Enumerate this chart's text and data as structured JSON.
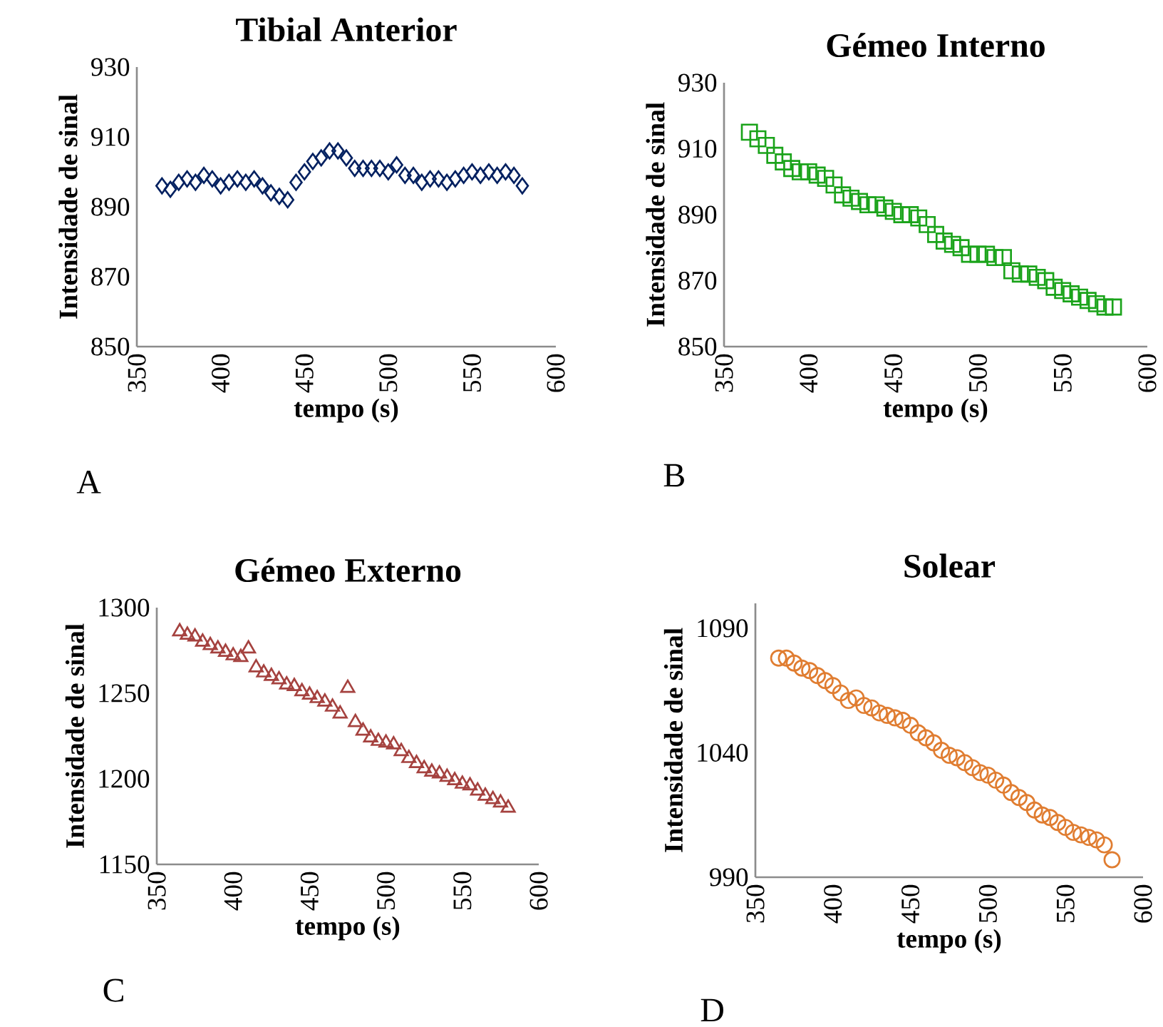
{
  "chart_data": [
    {
      "type": "scatter",
      "title": "Tibial Anterior",
      "xlabel": "tempo (s)",
      "ylabel": "Intensidade de sinal",
      "annotations": [
        "A"
      ],
      "marker": "diamond",
      "xlim": [
        350,
        600
      ],
      "xticks": [
        350,
        400,
        450,
        500,
        550,
        600
      ],
      "ylim": [
        850,
        930
      ],
      "yticks": [
        850,
        870,
        890,
        910,
        930
      ],
      "x": [
        365,
        370,
        375,
        380,
        385,
        390,
        395,
        400,
        405,
        410,
        415,
        420,
        425,
        430,
        435,
        440,
        445,
        450,
        455,
        460,
        465,
        470,
        475,
        480,
        485,
        490,
        495,
        500,
        505,
        510,
        515,
        520,
        525,
        530,
        535,
        540,
        545,
        550,
        555,
        560,
        565,
        570,
        575,
        580
      ],
      "series": [
        {
          "color": "#002060",
          "values": [
            896,
            895,
            897,
            898,
            897,
            899,
            898,
            896,
            897,
            898,
            897,
            898,
            896,
            894,
            893,
            892,
            897,
            900,
            903,
            904,
            906,
            906,
            904,
            901,
            901,
            901,
            901,
            900,
            902,
            899,
            899,
            897,
            898,
            898,
            897,
            898,
            899,
            900,
            899,
            900,
            899,
            900,
            899,
            896
          ]
        }
      ]
    },
    {
      "type": "scatter",
      "title": "Gémeo Interno",
      "xlabel": "tempo (s)",
      "ylabel": "Intensidade de sinal",
      "annotations": [
        "B"
      ],
      "marker": "square",
      "xlim": [
        350,
        600
      ],
      "xticks": [
        350,
        400,
        450,
        500,
        550,
        600
      ],
      "ylim": [
        850,
        930
      ],
      "yticks": [
        850,
        870,
        890,
        910,
        930
      ],
      "x": [
        365,
        370,
        375,
        380,
        385,
        390,
        395,
        400,
        405,
        410,
        415,
        420,
        425,
        430,
        435,
        440,
        445,
        450,
        455,
        460,
        465,
        470,
        475,
        480,
        485,
        490,
        495,
        500,
        505,
        510,
        515,
        520,
        525,
        530,
        535,
        540,
        545,
        550,
        555,
        560,
        565,
        570,
        575,
        580
      ],
      "series": [
        {
          "color": "#1aa31a",
          "values": [
            915,
            913,
            911,
            908,
            906,
            904,
            903,
            903,
            902,
            901,
            899,
            896,
            895,
            894,
            893,
            893,
            892,
            891,
            890,
            890,
            889,
            887,
            884,
            882,
            881,
            880,
            878,
            878,
            878,
            877,
            877,
            873,
            872,
            872,
            871,
            870,
            868,
            867,
            866,
            865,
            864,
            863,
            862,
            862
          ]
        }
      ]
    },
    {
      "type": "scatter",
      "title": "Gémeo Externo",
      "xlabel": "tempo (s)",
      "ylabel": "Intensidade de sinal",
      "annotations": [
        "C"
      ],
      "marker": "triangle",
      "xlim": [
        350,
        600
      ],
      "xticks": [
        350,
        400,
        450,
        500,
        550,
        600
      ],
      "ylim": [
        1150,
        1300
      ],
      "yticks": [
        1150,
        1200,
        1250,
        1300
      ],
      "x": [
        365,
        370,
        375,
        380,
        385,
        390,
        395,
        400,
        405,
        410,
        415,
        420,
        425,
        430,
        435,
        440,
        445,
        450,
        455,
        460,
        465,
        470,
        475,
        480,
        485,
        490,
        495,
        500,
        505,
        510,
        515,
        520,
        525,
        530,
        535,
        540,
        545,
        550,
        555,
        560,
        565,
        570,
        575,
        580
      ],
      "series": [
        {
          "color": "#a5423f",
          "values": [
            1286,
            1284,
            1283,
            1280,
            1278,
            1276,
            1274,
            1272,
            1271,
            1276,
            1265,
            1262,
            1260,
            1258,
            1255,
            1254,
            1251,
            1249,
            1247,
            1245,
            1242,
            1238,
            1253,
            1233,
            1228,
            1224,
            1222,
            1221,
            1220,
            1216,
            1212,
            1209,
            1206,
            1204,
            1203,
            1201,
            1199,
            1197,
            1196,
            1193,
            1190,
            1188,
            1186,
            1183
          ]
        }
      ]
    },
    {
      "type": "scatter",
      "title": "Solear",
      "xlabel": "tempo (s)",
      "ylabel": "Intensidade de sinal",
      "annotations": [
        "D"
      ],
      "marker": "circle",
      "xlim": [
        350,
        600
      ],
      "xticks": [
        350,
        400,
        450,
        500,
        550,
        600
      ],
      "ylim": [
        990,
        1100
      ],
      "yticks": [
        990,
        1040,
        1090
      ],
      "x": [
        365,
        370,
        375,
        380,
        385,
        390,
        395,
        400,
        405,
        410,
        415,
        420,
        425,
        430,
        435,
        440,
        445,
        450,
        455,
        460,
        465,
        470,
        475,
        480,
        485,
        490,
        495,
        500,
        505,
        510,
        515,
        520,
        525,
        530,
        535,
        540,
        545,
        550,
        555,
        560,
        565,
        570,
        575,
        580
      ],
      "series": [
        {
          "color": "#e07d31",
          "values": [
            1078,
            1078,
            1076,
            1074,
            1073,
            1071,
            1069,
            1067,
            1064,
            1061,
            1062,
            1059,
            1058,
            1056,
            1055,
            1054,
            1053,
            1051,
            1048,
            1046,
            1044,
            1041,
            1039,
            1038,
            1036,
            1034,
            1032,
            1031,
            1029,
            1027,
            1024,
            1022,
            1020,
            1017,
            1015,
            1014,
            1012,
            1010,
            1008,
            1007,
            1006,
            1005,
            1003,
            997
          ]
        }
      ]
    }
  ]
}
